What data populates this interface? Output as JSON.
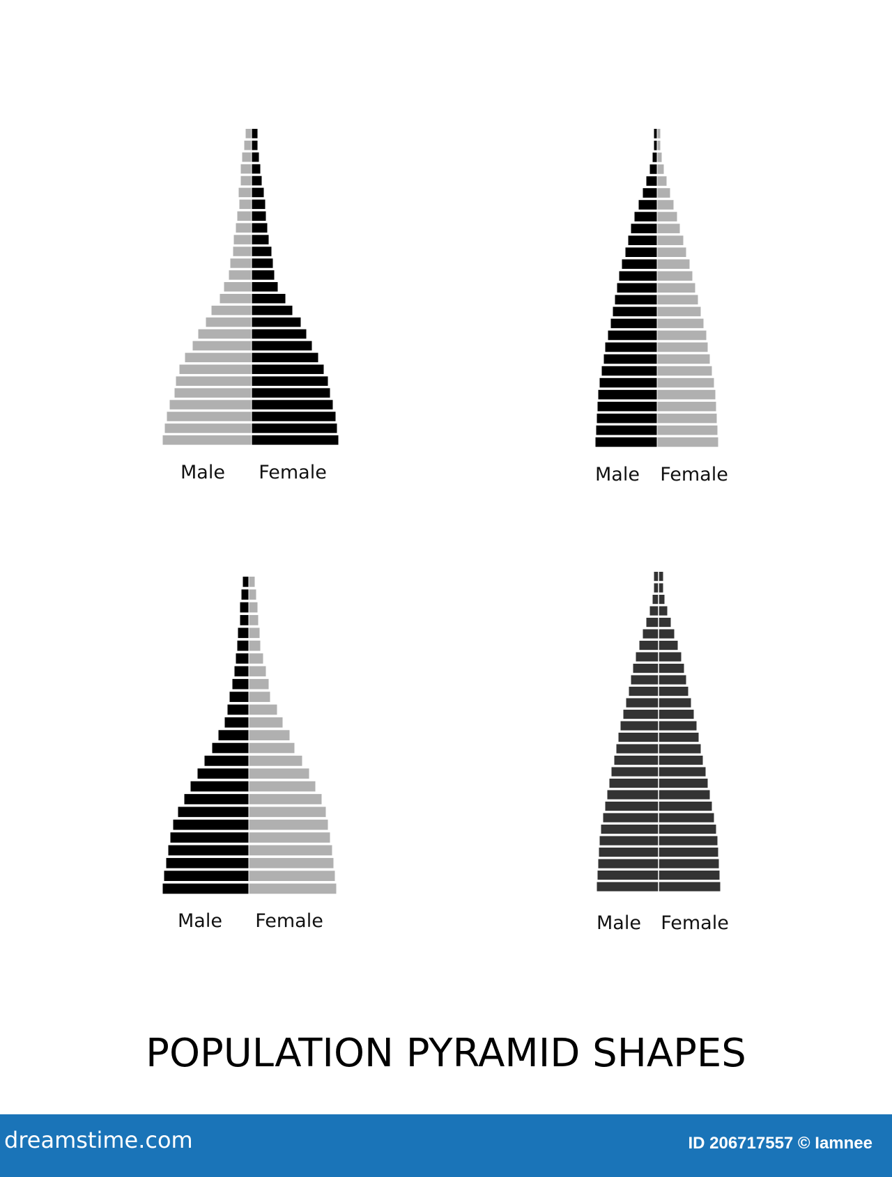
{
  "title": "POPULATION PYRAMID SHAPES",
  "footer": {
    "logo_text": "dreamstime.com",
    "credit": "ID 206717557 © Iamnee",
    "bar_color": "#1a74b8"
  },
  "colors": {
    "black": "#000000",
    "light_gray": "#b0b0b0",
    "mid_gray": "#808080",
    "dark_gray": "#333333"
  },
  "chart_data": [
    {
      "type": "bar",
      "layout": "population-pyramid",
      "position": "top-left",
      "labels": {
        "left": "Male",
        "right": "Female"
      },
      "series": [
        {
          "name": "Male",
          "values": [
            8,
            10,
            13,
            15,
            15,
            18,
            17,
            20,
            22,
            25,
            26,
            30,
            32,
            39,
            45,
            57,
            65,
            76,
            84,
            95,
            103,
            108,
            110,
            117,
            121,
            124,
            127
          ]
        },
        {
          "name": "Female",
          "values": [
            8,
            8,
            10,
            12,
            14,
            17,
            19,
            20,
            22,
            24,
            28,
            30,
            32,
            37,
            48,
            58,
            70,
            78,
            86,
            95,
            103,
            109,
            112,
            116,
            120,
            122,
            124
          ]
        }
      ],
      "colors": [
        "#b0b0b0",
        "#000000"
      ]
    },
    {
      "type": "bar",
      "layout": "population-pyramid",
      "position": "top-right",
      "labels": {
        "left": "Male",
        "right": "Female"
      },
      "series": [
        {
          "name": "Male",
          "values": [
            4,
            4,
            6,
            10,
            15,
            20,
            26,
            32,
            37,
            41,
            45,
            50,
            54,
            57,
            60,
            63,
            66,
            70,
            74,
            76,
            79,
            82,
            84,
            85,
            86,
            87,
            88
          ]
        },
        {
          "name": "Female",
          "values": [
            4,
            4,
            6,
            9,
            13,
            18,
            23,
            28,
            32,
            37,
            41,
            46,
            50,
            54,
            58,
            62,
            66,
            70,
            72,
            75,
            78,
            81,
            83,
            84,
            85,
            86,
            87
          ]
        }
      ],
      "colors": [
        "#000000",
        "#b0b0b0"
      ]
    },
    {
      "type": "bar",
      "layout": "population-pyramid",
      "position": "bottom-left",
      "labels": {
        "left": "Male",
        "right": "Female"
      },
      "series": [
        {
          "name": "Male",
          "values": [
            8,
            10,
            12,
            12,
            15,
            16,
            18,
            20,
            23,
            27,
            30,
            34,
            43,
            52,
            63,
            73,
            83,
            92,
            101,
            108,
            112,
            115,
            118,
            121,
            123
          ]
        },
        {
          "name": "Female",
          "values": [
            8,
            10,
            12,
            13,
            15,
            16,
            20,
            24,
            28,
            30,
            40,
            48,
            58,
            65,
            76,
            86,
            95,
            104,
            110,
            113,
            116,
            119,
            121,
            123,
            125
          ]
        }
      ],
      "colors": [
        "#000000",
        "#b0b0b0"
      ]
    },
    {
      "type": "bar",
      "layout": "population-pyramid",
      "position": "bottom-right",
      "labels": {
        "left": "Male",
        "right": "Female"
      },
      "series": [
        {
          "name": "Male",
          "values": [
            6,
            6,
            8,
            12,
            17,
            22,
            27,
            32,
            36,
            39,
            42,
            46,
            50,
            54,
            57,
            60,
            63,
            67,
            70,
            73,
            76,
            79,
            82,
            84,
            85,
            86,
            87,
            88
          ]
        },
        {
          "name": "Female",
          "values": [
            6,
            6,
            8,
            12,
            17,
            22,
            27,
            32,
            36,
            39,
            42,
            46,
            50,
            54,
            57,
            60,
            63,
            67,
            70,
            73,
            76,
            79,
            82,
            84,
            85,
            86,
            87,
            88
          ]
        }
      ],
      "colors": [
        "#333333",
        "#333333"
      ]
    }
  ]
}
